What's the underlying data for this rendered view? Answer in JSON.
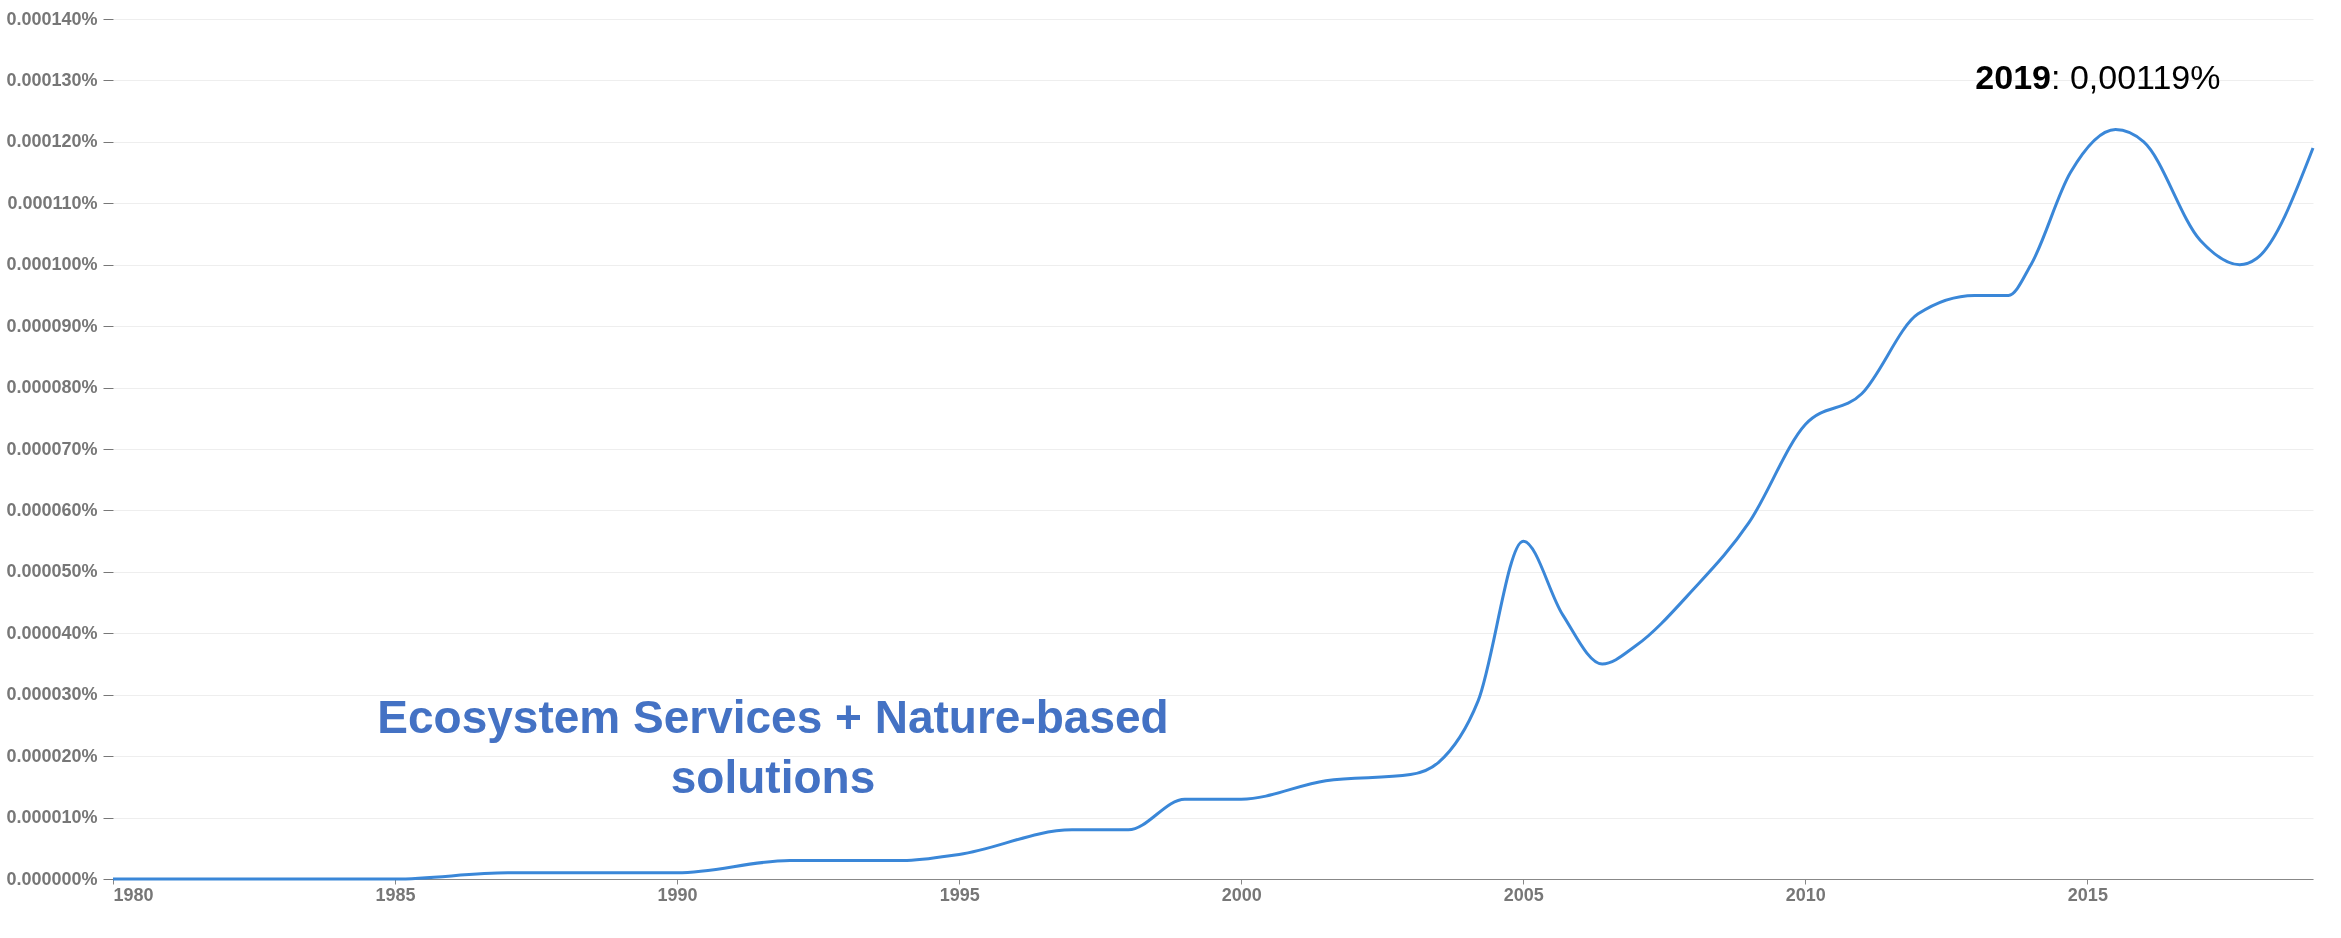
{
  "chart_data": {
    "type": "line",
    "x": [
      1980,
      1985,
      1987,
      1989,
      1990,
      1992,
      1994,
      1995,
      1997,
      1998,
      1999,
      2000,
      2001.5,
      2003,
      2003.5,
      2004.2,
      2005,
      2005.7,
      2006.4,
      2007,
      2008,
      2009,
      2010,
      2011,
      2012,
      2013,
      2013.6,
      2014,
      2014.7,
      2015.5,
      2016,
      2017,
      2017.7,
      2018,
      2019
    ],
    "series": [
      {
        "color": "#3a87d8",
        "values": [
          0.0,
          0.0,
          1e-06,
          1e-06,
          1e-06,
          3e-06,
          3e-06,
          4e-06,
          8e-06,
          8e-06,
          1.3e-05,
          1.3e-05,
          1.6e-05,
          1.7e-05,
          1.9e-05,
          2.9e-05,
          5.5e-05,
          4.3e-05,
          3.5e-05,
          3.8e-05,
          4.7e-05,
          5.8e-05,
          7.4e-05,
          7.9e-05,
          9.2e-05,
          9.5e-05,
          9.5e-05,
          0.0001,
          0.000115,
          0.000122,
          0.00012,
          0.000104,
          0.0001,
          0.000101,
          0.000119
        ]
      }
    ],
    "xlim": [
      1980,
      2019
    ],
    "xticks": [
      1980,
      1985,
      1990,
      1995,
      2000,
      2005,
      2010,
      2015
    ],
    "ylim": [
      0,
      0.00014
    ],
    "yticks": [
      {
        "value": 0,
        "label": "0.000000%"
      },
      {
        "value": 1e-05,
        "label": "0.000010%"
      },
      {
        "value": 2e-05,
        "label": "0.000020%"
      },
      {
        "value": 3e-05,
        "label": "0.000030%"
      },
      {
        "value": 4e-05,
        "label": "0.000040%"
      },
      {
        "value": 5e-05,
        "label": "0.000050%"
      },
      {
        "value": 6e-05,
        "label": "0.000060%"
      },
      {
        "value": 7e-05,
        "label": "0.000070%"
      },
      {
        "value": 8e-05,
        "label": "0.000080%"
      },
      {
        "value": 9e-05,
        "label": "0.000090%"
      },
      {
        "value": 0.0001,
        "label": "0.000100%"
      },
      {
        "value": 0.00011,
        "label": "0.000110%"
      },
      {
        "value": 0.00012,
        "label": "0.000120%"
      },
      {
        "value": 0.00013,
        "label": "0.000130%"
      },
      {
        "value": 0.00014,
        "label": "0.000140%"
      }
    ],
    "grid": "y",
    "annotations": [
      "2019: 0,00119%",
      "Ecosystem Services + Nature-based solutions"
    ]
  }
}
